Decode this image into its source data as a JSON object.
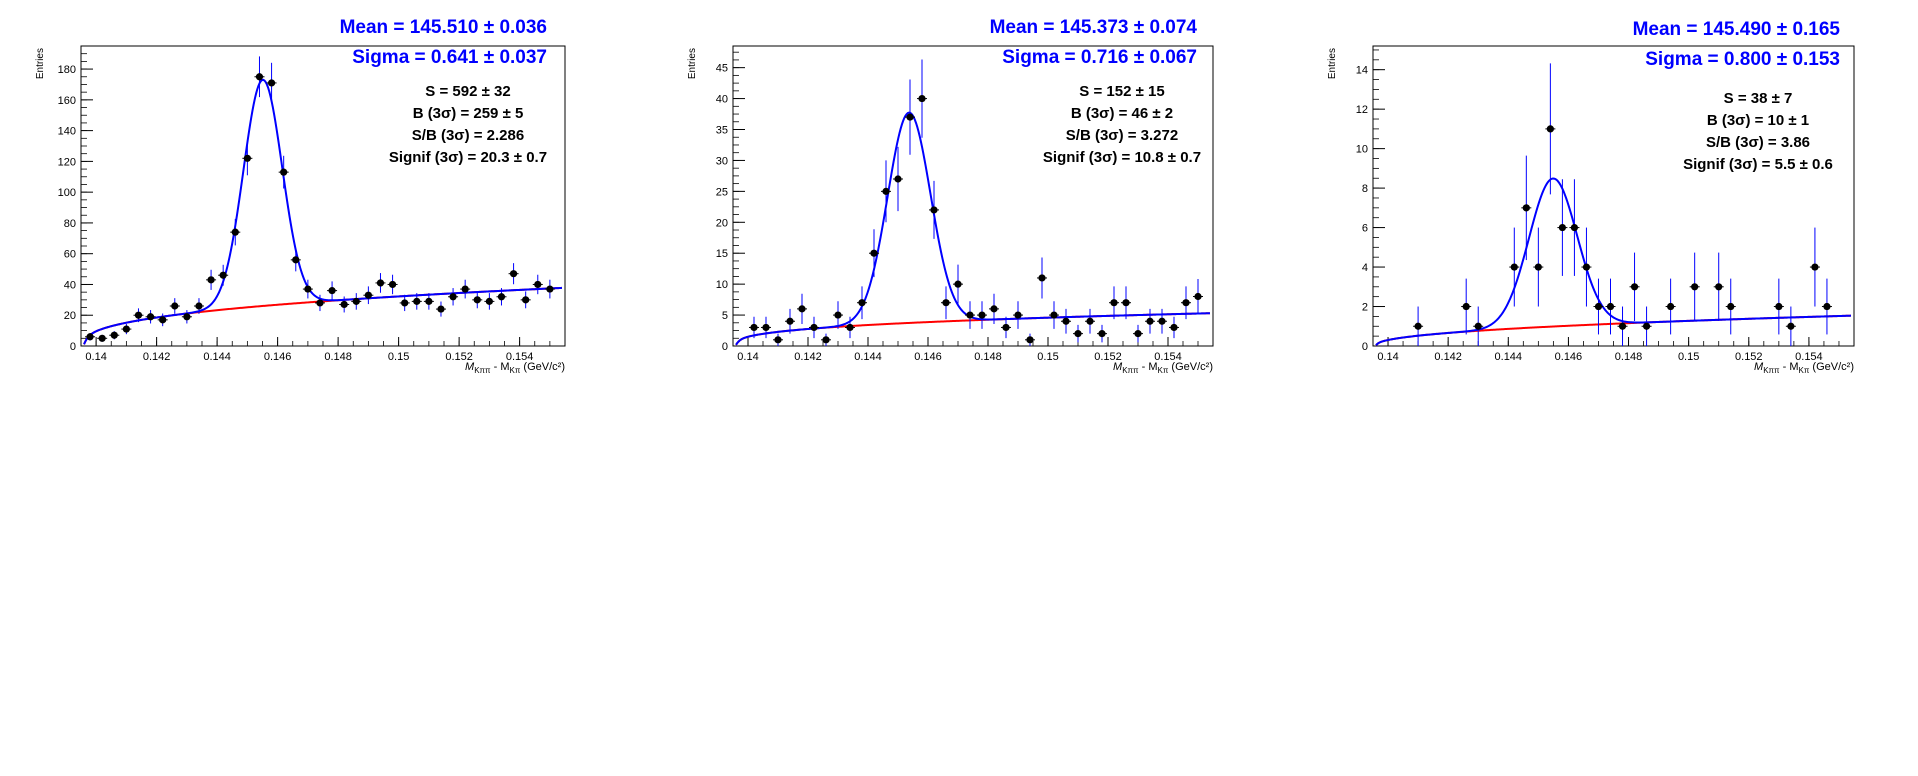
{
  "chart_data": [
    {
      "type": "scatter",
      "ylabel": "Entries",
      "xlabel_main": "M",
      "xlabel_sub1": "Kππ",
      "xlabel_mid": " - M",
      "xlabel_sub2": "Kπ",
      "xlabel_unit": " (GeV/c²)",
      "xlim": [
        0.1395,
        0.1555
      ],
      "ylim": [
        0,
        195
      ],
      "xticks": [
        0.14,
        0.142,
        0.144,
        0.146,
        0.148,
        0.15,
        0.152,
        0.154
      ],
      "xtick_labels": [
        "0.14",
        "0.142",
        "0.144",
        "0.146",
        "0.148",
        "0.15",
        "0.152",
        "0.154"
      ],
      "yticks": [
        0,
        20,
        40,
        60,
        80,
        100,
        120,
        140,
        160,
        180
      ],
      "ytick_labels": [
        "0",
        "20",
        "40",
        "60",
        "80",
        "100",
        "120",
        "140",
        "160",
        "180"
      ],
      "fit": {
        "mean": 0.14551,
        "sigma": 0.000641,
        "amp": 147,
        "bkg_a": 8e-05,
        "bkg_power": 0.38,
        "bkg_scale": 37
      },
      "stats_blue": [
        "Mean = 145.510 ± 0.036",
        "Sigma = 0.641 ± 0.037"
      ],
      "stats_black": [
        "S = 592 ± 32",
        "B (3σ) = 259 ± 5",
        "S/B (3σ) = 2.286",
        "Signif (3σ) = 20.3 ± 0.7"
      ],
      "points": {
        "x": [
          0.1398,
          0.1402,
          0.1406,
          0.141,
          0.1414,
          0.1418,
          0.1422,
          0.1426,
          0.143,
          0.1434,
          0.1438,
          0.1442,
          0.1446,
          0.145,
          0.1454,
          0.1458,
          0.1462,
          0.1466,
          0.147,
          0.1474,
          0.1478,
          0.1482,
          0.1486,
          0.149,
          0.1494,
          0.1498,
          0.1502,
          0.1506,
          0.151,
          0.1514,
          0.1518,
          0.1522,
          0.1526,
          0.153,
          0.1534,
          0.1538,
          0.1542,
          0.1546,
          0.155
        ],
        "y": [
          6,
          5,
          7,
          11,
          20,
          19,
          17,
          26,
          19,
          26,
          43,
          46,
          74,
          122,
          175,
          171,
          113,
          56,
          37,
          28,
          36,
          27,
          29,
          33,
          41,
          40,
          28,
          29,
          29,
          24,
          32,
          37,
          30,
          29,
          32,
          47,
          30,
          40,
          37
        ]
      }
    },
    {
      "type": "scatter",
      "ylabel": "Entries",
      "xlabel_main": "M",
      "xlabel_sub1": "Kππ",
      "xlabel_mid": " - M",
      "xlabel_sub2": "Kπ",
      "xlabel_unit": " (GeV/c²)",
      "xlim": [
        0.1395,
        0.1555
      ],
      "ylim": [
        0,
        48.5
      ],
      "xticks": [
        0.14,
        0.142,
        0.144,
        0.146,
        0.148,
        0.15,
        0.152,
        0.154
      ],
      "xtick_labels": [
        "0.14",
        "0.142",
        "0.144",
        "0.146",
        "0.148",
        "0.15",
        "0.152",
        "0.154"
      ],
      "yticks": [
        0,
        5,
        10,
        15,
        20,
        25,
        30,
        35,
        40,
        45
      ],
      "ytick_labels": [
        "0",
        "5",
        "10",
        "15",
        "20",
        "25",
        "30",
        "35",
        "40",
        "45"
      ],
      "fit": {
        "mean": 0.14537,
        "sigma": 0.000716,
        "amp": 34,
        "bkg_a": 8e-05,
        "bkg_power": 0.35,
        "bkg_scale": 5.2
      },
      "stats_blue": [
        "Mean = 145.373 ± 0.074",
        "Sigma = 0.716 ± 0.067"
      ],
      "stats_black": [
        "S = 152 ± 15",
        "B (3σ) = 46 ± 2",
        "S/B (3σ) = 3.272",
        "Signif (3σ) = 10.8 ± 0.7"
      ],
      "points": {
        "x": [
          0.1402,
          0.1406,
          0.141,
          0.1414,
          0.1418,
          0.1422,
          0.1426,
          0.143,
          0.1434,
          0.1438,
          0.1442,
          0.1446,
          0.145,
          0.1454,
          0.1458,
          0.1462,
          0.1466,
          0.147,
          0.1474,
          0.1478,
          0.1482,
          0.1486,
          0.149,
          0.1494,
          0.1498,
          0.1502,
          0.1506,
          0.151,
          0.1514,
          0.1518,
          0.1522,
          0.1526,
          0.153,
          0.1534,
          0.1538,
          0.1542,
          0.1546,
          0.155
        ],
        "y": [
          3,
          3,
          1,
          4,
          6,
          3,
          1,
          5,
          3,
          7,
          15,
          25,
          27,
          37,
          40,
          22,
          7,
          10,
          5,
          5,
          6,
          3,
          5,
          1,
          11,
          5,
          4,
          2,
          4,
          2,
          7,
          7,
          2,
          4,
          4,
          3,
          7,
          8
        ]
      }
    },
    {
      "type": "scatter",
      "ylabel": "Entries",
      "xlabel_main": "M",
      "xlabel_sub1": "Kππ",
      "xlabel_mid": " - M",
      "xlabel_sub2": "Kπ",
      "xlabel_unit": " (GeV/c²)",
      "xlim": [
        0.1395,
        0.1555
      ],
      "ylim": [
        0,
        15.2
      ],
      "xticks": [
        0.14,
        0.142,
        0.144,
        0.146,
        0.148,
        0.15,
        0.152,
        0.154
      ],
      "xtick_labels": [
        "0.14",
        "0.142",
        "0.144",
        "0.146",
        "0.148",
        "0.15",
        "0.152",
        "0.154"
      ],
      "yticks": [
        0,
        2,
        4,
        6,
        8,
        10,
        12,
        14
      ],
      "ytick_labels": [
        "0",
        "2",
        "4",
        "6",
        "8",
        "10",
        "12",
        "14"
      ],
      "fit": {
        "mean": 0.14549,
        "sigma": 0.0008,
        "amp": 7.5,
        "bkg_a": 5e-05,
        "bkg_power": 0.45,
        "bkg_scale": 1.5
      },
      "stats_blue": [
        "Mean = 145.490 ± 0.165",
        "Sigma = 0.800 ± 0.153"
      ],
      "stats_black": [
        "S = 38 ± 7",
        "B (3σ) = 10 ± 1",
        "S/B (3σ) = 3.86",
        "Signif (3σ) = 5.5 ± 0.6"
      ],
      "points": {
        "x": [
          0.141,
          0.1426,
          0.143,
          0.1442,
          0.1446,
          0.145,
          0.1454,
          0.1458,
          0.1462,
          0.1466,
          0.147,
          0.1474,
          0.1478,
          0.1482,
          0.1486,
          0.1494,
          0.1502,
          0.151,
          0.1514,
          0.153,
          0.1534,
          0.1542,
          0.1546
        ],
        "y": [
          1,
          2,
          1,
          4,
          7,
          4,
          11,
          6,
          6,
          4,
          2,
          2,
          1,
          3,
          1,
          2,
          3,
          3,
          2,
          2,
          1,
          4,
          2
        ]
      }
    }
  ],
  "colors": {
    "signal_fit": "#0000ff",
    "background_fit": "#ff0000",
    "stats_blue": "#0000ff",
    "stats_black": "#000000",
    "points": "#000000",
    "error_bars": "#0000ff"
  }
}
